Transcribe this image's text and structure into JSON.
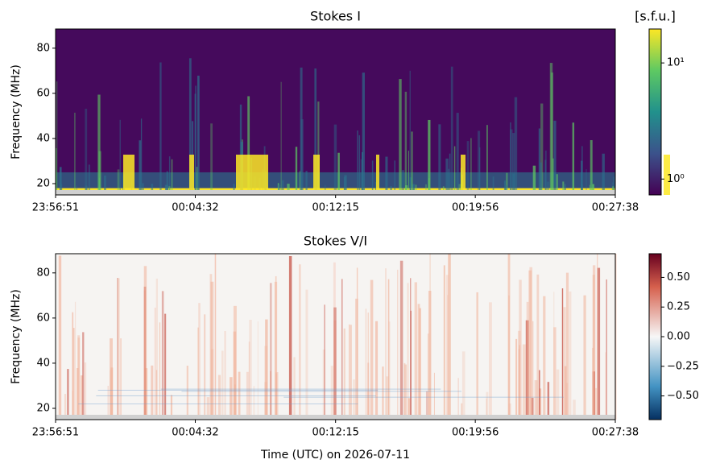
{
  "chart_data": [
    {
      "type": "heatmap",
      "title": "Stokes I",
      "ylabel": "Frequency (MHz)",
      "xlim": [
        0,
        1847
      ],
      "xticks": [
        {
          "value": 0,
          "label": "23:56:51"
        },
        {
          "value": 461,
          "label": "00:04:32"
        },
        {
          "value": 924,
          "label": "00:12:15"
        },
        {
          "value": 1385,
          "label": "00:19:56"
        },
        {
          "value": 1847,
          "label": "00:27:38"
        }
      ],
      "ylim": [
        15,
        88.5
      ],
      "yticks": [
        20,
        40,
        60,
        80
      ],
      "colorbar": {
        "label": "[s.f.u.]",
        "colormap": "viridis",
        "scale": "log",
        "lim": [
          0.73,
          19.6
        ],
        "ticks": [
          {
            "value": 1,
            "label": "10⁰"
          },
          {
            "value": 10,
            "label": "10¹"
          }
        ]
      }
    },
    {
      "type": "heatmap",
      "title": "Stokes V/I",
      "ylabel": "Frequency (MHz)",
      "xlabel": "Time (UTC) on 2026-07-11",
      "xlim": [
        0,
        1847
      ],
      "xticks": [
        {
          "value": 0,
          "label": "23:56:51"
        },
        {
          "value": 461,
          "label": "00:04:32"
        },
        {
          "value": 924,
          "label": "00:12:15"
        },
        {
          "value": 1385,
          "label": "00:19:56"
        },
        {
          "value": 1847,
          "label": "00:27:38"
        }
      ],
      "ylim": [
        15,
        88.5
      ],
      "yticks": [
        20,
        40,
        60,
        80
      ],
      "colorbar": {
        "colormap": "RdBu_r",
        "scale": "linear",
        "lim": [
          -0.7,
          0.7
        ],
        "ticks": [
          {
            "value": -0.5,
            "label": "−0.50"
          },
          {
            "value": -0.25,
            "label": "−0.25"
          },
          {
            "value": 0,
            "label": "0.00"
          },
          {
            "value": 0.25,
            "label": "0.25"
          },
          {
            "value": 0.5,
            "label": "0.50"
          }
        ]
      }
    }
  ]
}
